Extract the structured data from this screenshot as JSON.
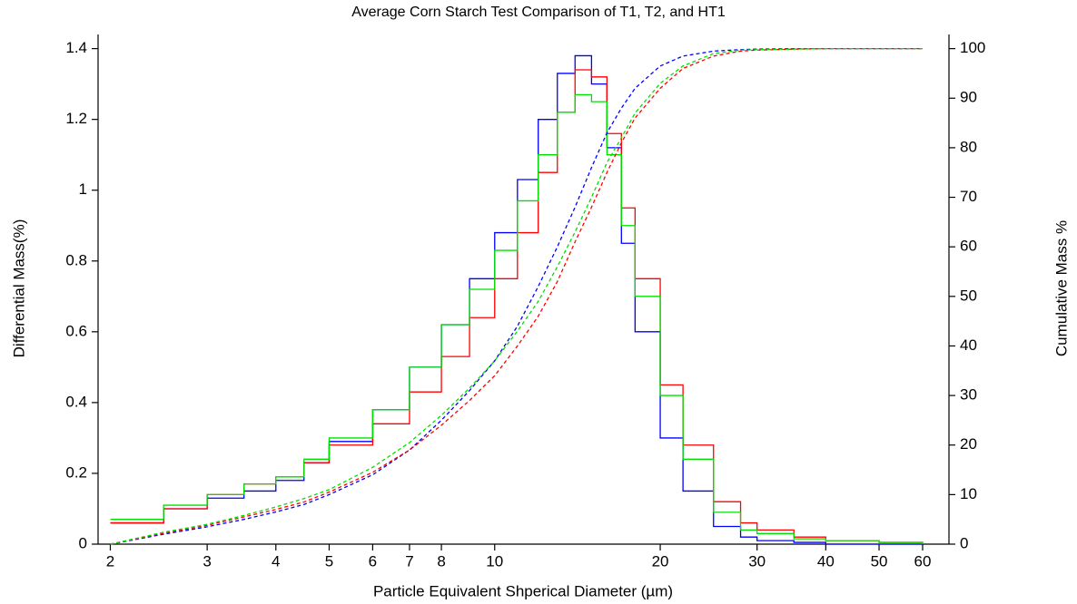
{
  "chart_data": {
    "type": "line",
    "title": "Average Corn Starch Test Comparison of T1, T2, and HT1",
    "x_label": "Particle Equivalent Shperical Diameter (µm)",
    "y_label": "Differential Mass(%)",
    "y2_label": "Cumulative Mass %",
    "x_log": true,
    "step": true,
    "x": [
      2,
      2.5,
      3,
      3.5,
      4,
      4.5,
      5,
      6,
      7,
      8,
      9,
      10,
      11,
      12,
      13,
      14,
      15,
      16,
      17,
      18,
      20,
      22,
      25,
      28,
      30,
      35,
      40,
      50,
      60
    ],
    "series": [
      {
        "color": "#0000ff",
        "values": [
          0.06,
          0.1,
          0.13,
          0.15,
          0.18,
          0.23,
          0.29,
          0.38,
          0.5,
          0.62,
          0.75,
          0.88,
          1.03,
          1.2,
          1.33,
          1.38,
          1.3,
          1.12,
          0.85,
          0.6,
          0.3,
          0.15,
          0.05,
          0.02,
          0.01,
          0.005,
          0,
          0,
          0
        ]
      },
      {
        "color": "#ff0000",
        "values": [
          0.06,
          0.1,
          0.14,
          0.17,
          0.19,
          0.23,
          0.28,
          0.34,
          0.43,
          0.53,
          0.64,
          0.75,
          0.88,
          1.05,
          1.22,
          1.34,
          1.32,
          1.16,
          0.95,
          0.75,
          0.45,
          0.28,
          0.12,
          0.06,
          0.04,
          0.02,
          0.01,
          0.005,
          0
        ]
      },
      {
        "color": "#00e000",
        "values": [
          0.07,
          0.11,
          0.14,
          0.17,
          0.19,
          0.24,
          0.3,
          0.38,
          0.5,
          0.62,
          0.72,
          0.83,
          0.97,
          1.1,
          1.22,
          1.27,
          1.25,
          1.1,
          0.9,
          0.7,
          0.42,
          0.24,
          0.09,
          0.04,
          0.03,
          0.015,
          0.01,
          0.005,
          0
        ]
      },
      {
        "color": "#0000ff",
        "axis": "y2",
        "dashed": true,
        "values": [
          0,
          2,
          3.5,
          5,
          6.5,
          8,
          10,
          14,
          19,
          25,
          31,
          37,
          44,
          52,
          60,
          68,
          76,
          83,
          88,
          92,
          96.5,
          98.5,
          99.5,
          99.8,
          99.9,
          100,
          100,
          100,
          100
        ]
      },
      {
        "color": "#ff0000",
        "axis": "y2",
        "dashed": true,
        "values": [
          0,
          2.2,
          3.8,
          5.5,
          7,
          8.5,
          10.5,
          14.5,
          19,
          24,
          29,
          34,
          40,
          46,
          53,
          61,
          68,
          75,
          81,
          86,
          92,
          96,
          98.5,
          99.5,
          99.7,
          99.9,
          100,
          100,
          100
        ]
      },
      {
        "color": "#00e000",
        "axis": "y2",
        "dashed": true,
        "values": [
          0,
          2.4,
          4,
          5.8,
          7.5,
          9.2,
          11,
          15.5,
          20.5,
          26,
          31.5,
          37,
          43,
          49,
          56,
          63,
          70,
          77,
          82,
          87,
          93,
          96.5,
          99,
          99.7,
          99.8,
          99.9,
          100,
          100,
          100
        ]
      }
    ],
    "xlim": [
      1.9,
      67
    ],
    "xticks": [
      2,
      3,
      4,
      5,
      6,
      7,
      8,
      10,
      20,
      30,
      40,
      50,
      60
    ],
    "ylim": [
      0,
      1.44
    ],
    "yticks": [
      0,
      0.2,
      0.4,
      0.6,
      0.8,
      1,
      1.2,
      1.4
    ],
    "y2lim": [
      0,
      102.86
    ],
    "y2ticks": [
      0,
      10,
      20,
      30,
      40,
      50,
      60,
      70,
      80,
      90,
      100
    ]
  }
}
